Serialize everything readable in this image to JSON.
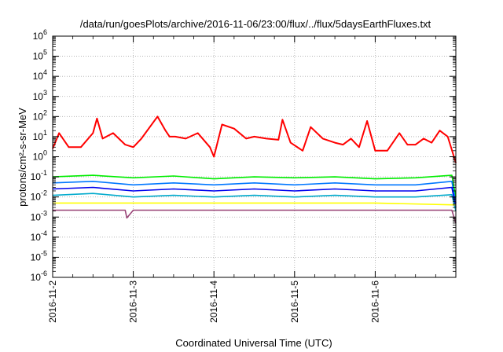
{
  "chart_data": {
    "type": "line",
    "title": "/data/run/goesPlots/archive/2016-11-06/23:00/flux/../flux/5daysEarthFluxes.txt",
    "xlabel": "Coordinated Universal Time (UTC)",
    "ylabel": "protons/cm²-s-sr-MeV",
    "y_scale": "log",
    "ylim": [
      1e-06,
      1000000.0
    ],
    "xlim": [
      "2016-11-02T00:00",
      "2016-11-07T00:00"
    ],
    "x_tick_labels": [
      "2016-11-2",
      "2016-11-3",
      "2016-11-4",
      "2016-11-5",
      "2016-11-6"
    ],
    "y_tick_labels": [
      {
        "base": "10",
        "exp": "-6"
      },
      {
        "base": "10",
        "exp": "-5"
      },
      {
        "base": "10",
        "exp": "-4"
      },
      {
        "base": "10",
        "exp": "-3"
      },
      {
        "base": "10",
        "exp": "-2"
      },
      {
        "base": "10",
        "exp": "-1"
      },
      {
        "base": "10",
        "exp": "0"
      },
      {
        "base": "10",
        "exp": "1"
      },
      {
        "base": "10",
        "exp": "2"
      },
      {
        "base": "10",
        "exp": "3"
      },
      {
        "base": "10",
        "exp": "4"
      },
      {
        "base": "10",
        "exp": "5"
      },
      {
        "base": "10",
        "exp": "6"
      }
    ],
    "grid": true,
    "legend": "none",
    "series": [
      {
        "color": "#ff0000",
        "x": [
          0.0,
          0.08,
          0.2,
          0.35,
          0.5,
          0.55,
          0.62,
          0.75,
          0.9,
          1.0,
          1.1,
          1.3,
          1.4,
          1.45,
          1.52,
          1.65,
          1.8,
          1.95,
          2.0,
          2.1,
          2.25,
          2.4,
          2.5,
          2.65,
          2.8,
          2.85,
          2.95,
          3.1,
          3.2,
          3.35,
          3.5,
          3.6,
          3.7,
          3.8,
          3.9,
          4.0,
          4.15,
          4.3,
          4.4,
          4.5,
          4.6,
          4.7,
          4.8,
          4.9,
          5.0
        ],
        "y": [
          2.5,
          15,
          3,
          3,
          15,
          80,
          8,
          15,
          4,
          3,
          8,
          100,
          20,
          10,
          10,
          8,
          15,
          3,
          1,
          40,
          25,
          8,
          10,
          8,
          7,
          70,
          5,
          2,
          30,
          8,
          5,
          4,
          8,
          3,
          60,
          2,
          2,
          15,
          4,
          4,
          8,
          5,
          20,
          10,
          0.5
        ]
      },
      {
        "color": "#00ee00",
        "x": [
          0.0,
          0.5,
          1.0,
          1.5,
          2.0,
          2.5,
          3.0,
          3.5,
          4.0,
          4.5,
          4.95,
          5.0
        ],
        "y": [
          0.1,
          0.12,
          0.09,
          0.11,
          0.08,
          0.1,
          0.09,
          0.1,
          0.08,
          0.09,
          0.12,
          0.01
        ]
      },
      {
        "color": "#0077ff",
        "x": [
          0.0,
          0.5,
          1.0,
          1.5,
          2.0,
          2.5,
          3.0,
          3.5,
          4.0,
          4.5,
          4.95,
          5.0
        ],
        "y": [
          0.05,
          0.06,
          0.04,
          0.05,
          0.04,
          0.05,
          0.04,
          0.05,
          0.04,
          0.04,
          0.06,
          0.005
        ]
      },
      {
        "color": "#0000ee",
        "x": [
          0.0,
          0.5,
          1.0,
          1.5,
          2.0,
          2.5,
          3.0,
          3.5,
          4.0,
          4.5,
          4.95,
          5.0
        ],
        "y": [
          0.025,
          0.03,
          0.02,
          0.025,
          0.02,
          0.025,
          0.02,
          0.025,
          0.02,
          0.02,
          0.03,
          0.003
        ]
      },
      {
        "color": "#00aacc",
        "x": [
          0.0,
          0.5,
          1.0,
          1.5,
          2.0,
          2.5,
          3.0,
          3.5,
          4.0,
          4.5,
          4.95,
          5.0
        ],
        "y": [
          0.012,
          0.015,
          0.01,
          0.012,
          0.01,
          0.012,
          0.01,
          0.012,
          0.01,
          0.01,
          0.013,
          0.002
        ]
      },
      {
        "color": "#ffff00",
        "x": [
          0.0,
          1.0,
          2.0,
          3.0,
          4.0,
          5.0
        ],
        "y": [
          0.005,
          0.005,
          0.005,
          0.005,
          0.005,
          0.004
        ]
      },
      {
        "color": "#994477",
        "x": [
          0.0,
          0.9,
          0.92,
          1.0,
          2.0,
          3.0,
          4.0,
          4.95,
          5.0
        ],
        "y": [
          0.0022,
          0.0022,
          0.0009,
          0.0022,
          0.0022,
          0.0022,
          0.0022,
          0.0022,
          0.0005
        ]
      }
    ]
  }
}
